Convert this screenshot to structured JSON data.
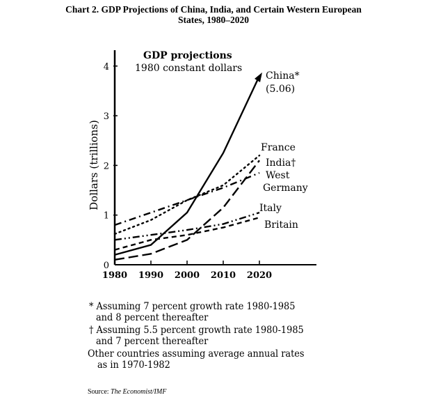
{
  "title_line1": "Chart 2. GDP Projections of China, India, and Certain Western European",
  "title_line2": "States, 1980–2020",
  "chart_data": {
    "type": "line",
    "title": "GDP projections",
    "subtitle": "1980 constant dollars",
    "xlabel": "",
    "ylabel": "Dollars (trillions)",
    "x": [
      1980,
      1990,
      2000,
      2010,
      2020
    ],
    "xlim": [
      1980,
      2035
    ],
    "ylim": [
      0,
      4.3
    ],
    "xticks": [
      "1980",
      "1990",
      "2000",
      "2010",
      "2020"
    ],
    "yticks": [
      "0",
      "1",
      "2",
      "3",
      "4"
    ],
    "grid": false,
    "series": [
      {
        "name": "China",
        "label": "China*",
        "note": "(5.06)",
        "style": "solid",
        "values": [
          0.2,
          0.4,
          1.05,
          2.25,
          3.8
        ]
      },
      {
        "name": "France",
        "label": "France",
        "style": "dotted",
        "values": [
          0.62,
          0.9,
          1.3,
          1.6,
          2.2
        ]
      },
      {
        "name": "India",
        "label": "India†",
        "style": "long-dash",
        "values": [
          0.1,
          0.22,
          0.5,
          1.15,
          2.1
        ]
      },
      {
        "name": "West Germany",
        "label": "West",
        "label2": "Germany",
        "style": "dash-dot",
        "values": [
          0.8,
          1.05,
          1.3,
          1.55,
          1.85
        ]
      },
      {
        "name": "Italy",
        "label": "Italy",
        "style": "dash-dot-dot",
        "values": [
          0.5,
          0.6,
          0.7,
          0.82,
          1.05
        ]
      },
      {
        "name": "Britain",
        "label": "Britain",
        "style": "short-dash",
        "values": [
          0.3,
          0.5,
          0.6,
          0.75,
          0.95
        ]
      }
    ]
  },
  "footnotes": [
    "* Assuming 7 percent growth rate 1980-1985",
    "and 8 percent thereafter",
    "† Assuming 5.5 percent growth rate 1980-1985",
    "and 7 percent thereafter",
    "Other countries assuming average annual rates",
    "as in 1970-1982"
  ],
  "source_label": "Source:",
  "source_text": "The Economist/IMF"
}
